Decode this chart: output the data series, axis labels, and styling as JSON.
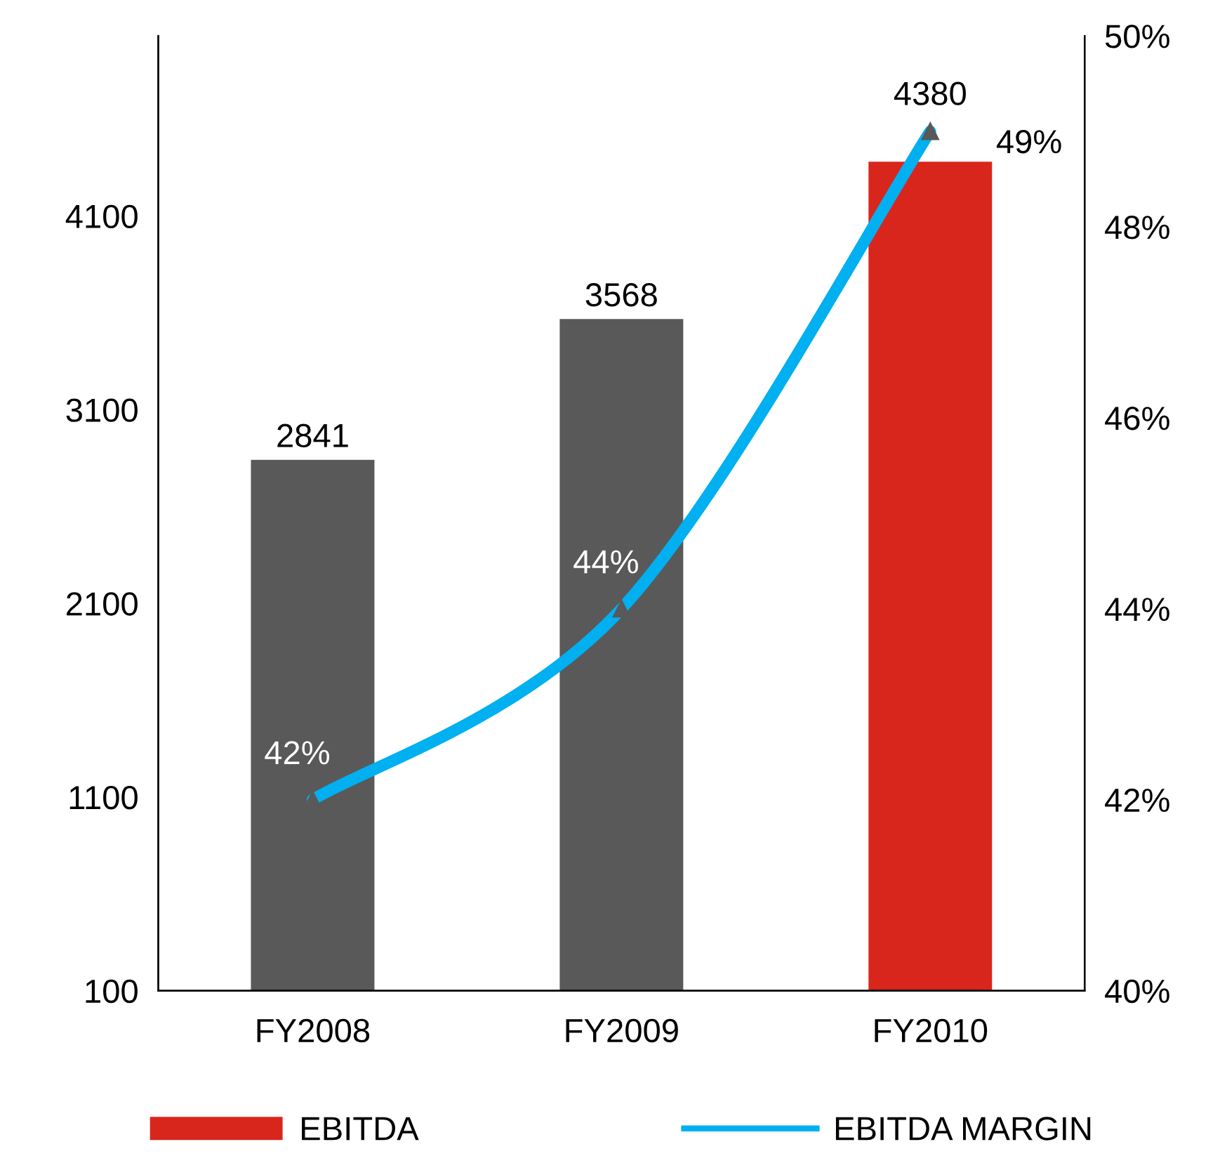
{
  "chart_data": {
    "type": "bar",
    "categories": [
      "FY2008",
      "FY2009",
      "FY2010"
    ],
    "series": [
      {
        "name": "EBITDA",
        "type": "bar",
        "color": "#d9261c",
        "colors": [
          "#595959",
          "#595959",
          "#d9261c"
        ],
        "values": [
          2841,
          3568,
          4380
        ],
        "data_labels": true
      },
      {
        "name": "EBITDA MARGIN",
        "type": "line",
        "axis": "y2",
        "color": "#00b0f0",
        "values": [
          42,
          44,
          49
        ],
        "value_labels": [
          "42%",
          "44%",
          "49%"
        ],
        "marker": "triangle"
      }
    ],
    "ylim": [
      100,
      5030
    ],
    "yticks": [
      100,
      1100,
      2100,
      3100,
      4100
    ],
    "y2lim": [
      40,
      50
    ],
    "y2ticks": [
      {
        "value": 40,
        "label": "40%"
      },
      {
        "value": 42,
        "label": "42%"
      },
      {
        "value": 44,
        "label": "44%"
      },
      {
        "value": 46,
        "label": "46%"
      },
      {
        "value": 48,
        "label": "48%"
      },
      {
        "value": 50,
        "label": "50%"
      }
    ],
    "grid": false,
    "legend": "bottom"
  }
}
